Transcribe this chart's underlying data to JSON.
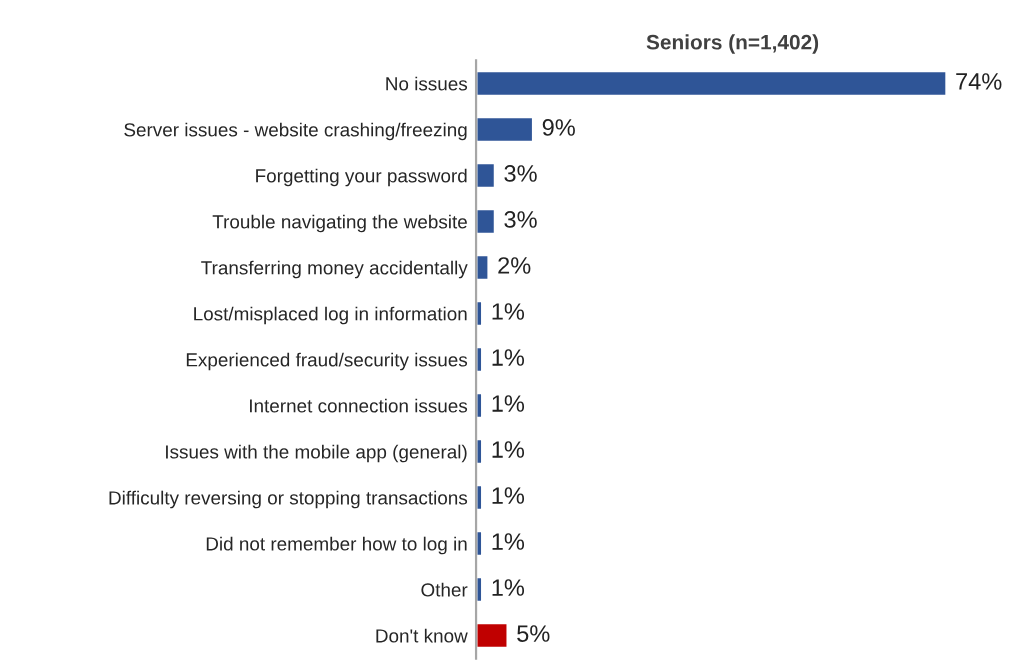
{
  "chart_data": {
    "type": "bar",
    "orientation": "horizontal",
    "title": "Seniors (n=1,402)",
    "categories": [
      "No issues",
      "Server issues - website crashing/freezing",
      "Forgetting your password",
      "Trouble navigating the website",
      "Transferring money accidentally",
      "Lost/misplaced log in information",
      "Experienced fraud/security issues",
      "Internet connection issues",
      "Issues with the mobile app (general)",
      "Difficulty reversing or stopping transactions",
      "Did not remember how to log in",
      "Other",
      "Don't know"
    ],
    "values": [
      74,
      9,
      3,
      3,
      2,
      1,
      1,
      1,
      1,
      1,
      1,
      1,
      5
    ],
    "value_labels": [
      "74%",
      "9%",
      "3%",
      "3%",
      "2%",
      "1%",
      "1%",
      "1%",
      "1%",
      "1%",
      "1%",
      "1%",
      "5%"
    ],
    "colors": [
      "#2f5597",
      "#2f5597",
      "#2f5597",
      "#2f5597",
      "#2f5597",
      "#2f5597",
      "#2f5597",
      "#2f5597",
      "#2f5597",
      "#2f5597",
      "#2f5597",
      "#2f5597",
      "#c00000"
    ],
    "grid": false,
    "legend": false
  }
}
